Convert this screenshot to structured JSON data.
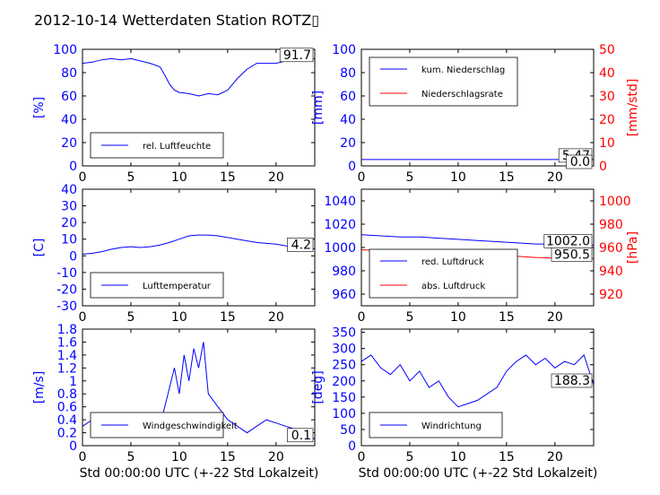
{
  "title": "2012-10-14 Wetterdaten Station ROTZ▯",
  "xlabel": "Std 00:00:00 UTC (+-22 Std Lokalzeit)",
  "colors": {
    "left_axis": "#0000ff",
    "right_axis": "#ff0000"
  },
  "chart_data": [
    {
      "type": "line",
      "ylabel": "[%]",
      "xlim": [
        0,
        24
      ],
      "ylim": [
        0,
        100
      ],
      "xticks": [
        0,
        5,
        10,
        15,
        20
      ],
      "yticks": [
        0,
        20,
        40,
        60,
        80,
        100
      ],
      "legend": "lower-left",
      "series": [
        {
          "name": "rel. Luftfeuchte",
          "color": "#0000ff",
          "x": [
            0,
            1,
            2,
            3,
            4,
            5,
            6,
            7,
            8,
            8.5,
            9,
            9.5,
            10,
            11,
            12,
            13,
            14,
            15,
            16,
            17,
            18,
            19,
            20,
            21,
            22,
            23,
            24
          ],
          "y": [
            88,
            89,
            91,
            92,
            91,
            92,
            90,
            88,
            85,
            78,
            70,
            65,
            63,
            62,
            60,
            62,
            61,
            65,
            75,
            83,
            88,
            88,
            88,
            90,
            91,
            92,
            91.7
          ]
        }
      ],
      "last_value": "91.7"
    },
    {
      "type": "line",
      "ylabel": "[mm]",
      "ylabel_right": "[mm/std]",
      "xlim": [
        0,
        24
      ],
      "ylim": [
        0,
        100
      ],
      "ylim_right": [
        0,
        50
      ],
      "xticks": [
        0,
        5,
        10,
        15,
        20
      ],
      "yticks": [
        0,
        20,
        40,
        60,
        80,
        100
      ],
      "yticks_right": [
        0,
        10,
        20,
        30,
        40,
        50
      ],
      "legend": "top-left",
      "series": [
        {
          "name": "kum. Niederschlag",
          "color": "#0000ff",
          "axis": "left",
          "x": [
            0,
            24
          ],
          "y": [
            5.47,
            5.47
          ]
        },
        {
          "name": "Niederschlagsrate",
          "color": "#ff0000",
          "axis": "right",
          "x": [
            0,
            24
          ],
          "y": [
            0.0,
            0.0
          ]
        }
      ],
      "last_values": [
        "5.47",
        "0.0"
      ]
    },
    {
      "type": "line",
      "ylabel": "[C]",
      "xlim": [
        0,
        24
      ],
      "ylim": [
        -30,
        40
      ],
      "xticks": [
        0,
        5,
        10,
        15,
        20
      ],
      "yticks": [
        -30,
        -20,
        -10,
        0,
        10,
        20,
        30,
        40
      ],
      "legend": "lower-left",
      "series": [
        {
          "name": "Lufttemperatur",
          "color": "#0000ff",
          "x": [
            0,
            1,
            2,
            3,
            4,
            5,
            6,
            7,
            8,
            9,
            10,
            11,
            12,
            13,
            14,
            15,
            16,
            17,
            18,
            19,
            20,
            21,
            22,
            23,
            24
          ],
          "y": [
            1,
            1.5,
            2.5,
            4,
            5,
            5.5,
            5,
            5.5,
            6.5,
            8,
            10,
            12,
            12.5,
            12.5,
            12,
            11,
            10,
            9,
            8,
            7.5,
            7,
            6,
            5,
            4.5,
            4.2
          ]
        }
      ],
      "last_value": "4.2"
    },
    {
      "type": "line",
      "ylabel": "",
      "ylabel_right": "[hPa]",
      "xlim": [
        0,
        24
      ],
      "ylim": [
        950,
        1050
      ],
      "ylim_right": [
        910,
        1010
      ],
      "xticks": [
        0,
        5,
        10,
        15,
        20
      ],
      "yticks": [
        960,
        980,
        1000,
        1020,
        1040
      ],
      "yticks_right": [
        920,
        940,
        960,
        980,
        1000
      ],
      "legend": "lower-left",
      "series": [
        {
          "name": "red. Luftdruck",
          "color": "#0000ff",
          "axis": "left",
          "x": [
            0,
            2,
            4,
            6,
            8,
            10,
            12,
            14,
            16,
            18,
            20,
            22,
            24
          ],
          "y": [
            1011,
            1010,
            1009,
            1009,
            1008,
            1007,
            1006,
            1005,
            1004,
            1003,
            1003,
            1002.5,
            1002.0
          ]
        },
        {
          "name": "abs. Luftdruck",
          "color": "#ff0000",
          "axis": "right",
          "x": [
            0,
            2,
            4,
            6,
            8,
            10,
            12,
            14,
            16,
            18,
            20,
            22,
            24
          ],
          "y": [
            958,
            957.5,
            957,
            957,
            956.5,
            955.5,
            954.5,
            953.5,
            952.5,
            951.5,
            951,
            950.5,
            950.5
          ]
        }
      ],
      "last_values": [
        "1002.0",
        "950.5"
      ]
    },
    {
      "type": "line",
      "ylabel": "[m/s]",
      "xlim": [
        0,
        24
      ],
      "ylim": [
        0,
        1.8
      ],
      "xticks": [
        0,
        5,
        10,
        15,
        20
      ],
      "yticks": [
        0.0,
        0.2,
        0.4,
        0.6,
        0.8,
        1.0,
        1.2,
        1.4,
        1.6,
        1.8
      ],
      "legend": "lower-left",
      "series": [
        {
          "name": "Windgeschwindigkeit",
          "color": "#0000ff",
          "x": [
            0,
            1,
            2,
            3,
            4,
            5,
            6,
            7,
            8,
            8.5,
            9,
            9.5,
            10,
            10.5,
            11,
            11.5,
            12,
            12.5,
            13,
            14,
            15,
            16,
            17,
            18,
            19,
            20,
            21,
            22,
            23,
            24
          ],
          "y": [
            0.3,
            0.4,
            0.3,
            0.4,
            0.3,
            0.45,
            0.3,
            0.35,
            0.3,
            0.6,
            0.9,
            1.2,
            0.8,
            1.4,
            1.0,
            1.5,
            1.2,
            1.6,
            0.8,
            0.6,
            0.4,
            0.3,
            0.2,
            0.3,
            0.4,
            0.35,
            0.3,
            0.25,
            0.2,
            0.1
          ]
        }
      ],
      "last_value": "0.1"
    },
    {
      "type": "line",
      "ylabel": "[deg]",
      "xlim": [
        0,
        24
      ],
      "ylim": [
        0,
        360
      ],
      "xticks": [
        0,
        5,
        10,
        15,
        20
      ],
      "yticks": [
        0,
        50,
        100,
        150,
        200,
        250,
        300,
        350
      ],
      "legend": "lower-left",
      "series": [
        {
          "name": "Windrichtung",
          "color": "#0000ff",
          "x": [
            0,
            1,
            2,
            3,
            4,
            5,
            6,
            7,
            8,
            9,
            10,
            11,
            12,
            13,
            14,
            15,
            16,
            17,
            18,
            19,
            20,
            21,
            22,
            23,
            24
          ],
          "y": [
            260,
            280,
            240,
            220,
            250,
            200,
            230,
            180,
            200,
            150,
            120,
            130,
            140,
            160,
            180,
            230,
            260,
            280,
            250,
            270,
            240,
            260,
            250,
            280,
            188.3
          ]
        }
      ],
      "last_value": "188.3"
    }
  ]
}
